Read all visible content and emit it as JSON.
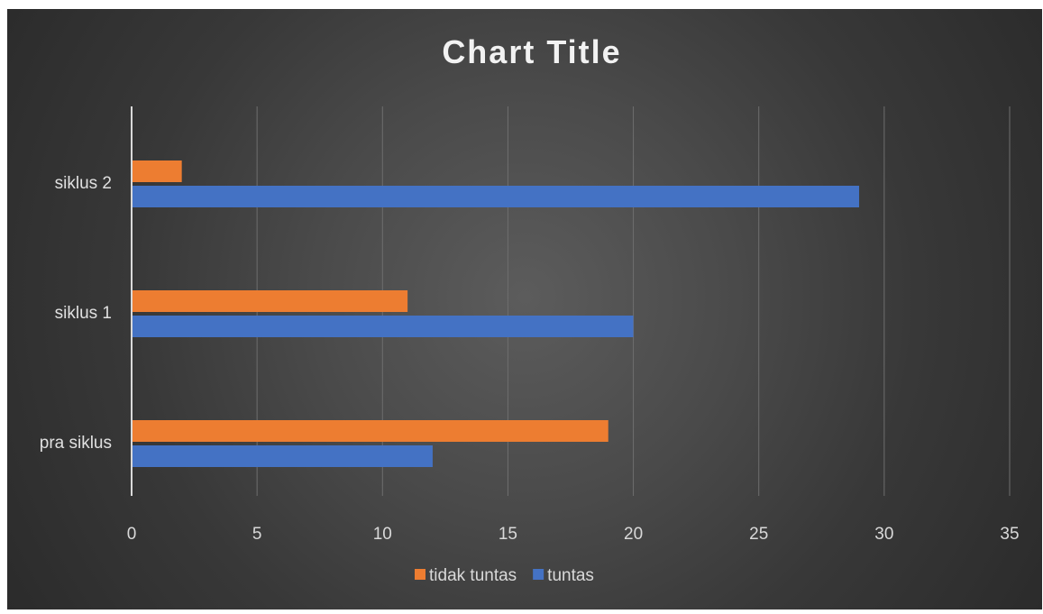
{
  "chart_data": {
    "type": "bar",
    "orientation": "horizontal",
    "title": "Chart Title",
    "categories": [
      "pra siklus",
      "siklus 1",
      "siklus 2"
    ],
    "series": [
      {
        "name": "tuntas",
        "color": "#4472C4",
        "values": [
          12,
          20,
          29
        ]
      },
      {
        "name": "tidak tuntas",
        "color": "#ED7D31",
        "values": [
          19,
          11,
          2
        ]
      }
    ],
    "xlim": [
      0,
      35
    ],
    "xticks": [
      0,
      5,
      10,
      15,
      20,
      25,
      30,
      35
    ],
    "grid": true,
    "legend_position": "bottom"
  },
  "legend": {
    "items": [
      {
        "name": "tidak tuntas",
        "color": "#ED7D31"
      },
      {
        "name": "tuntas",
        "color": "#4472C4"
      }
    ]
  }
}
